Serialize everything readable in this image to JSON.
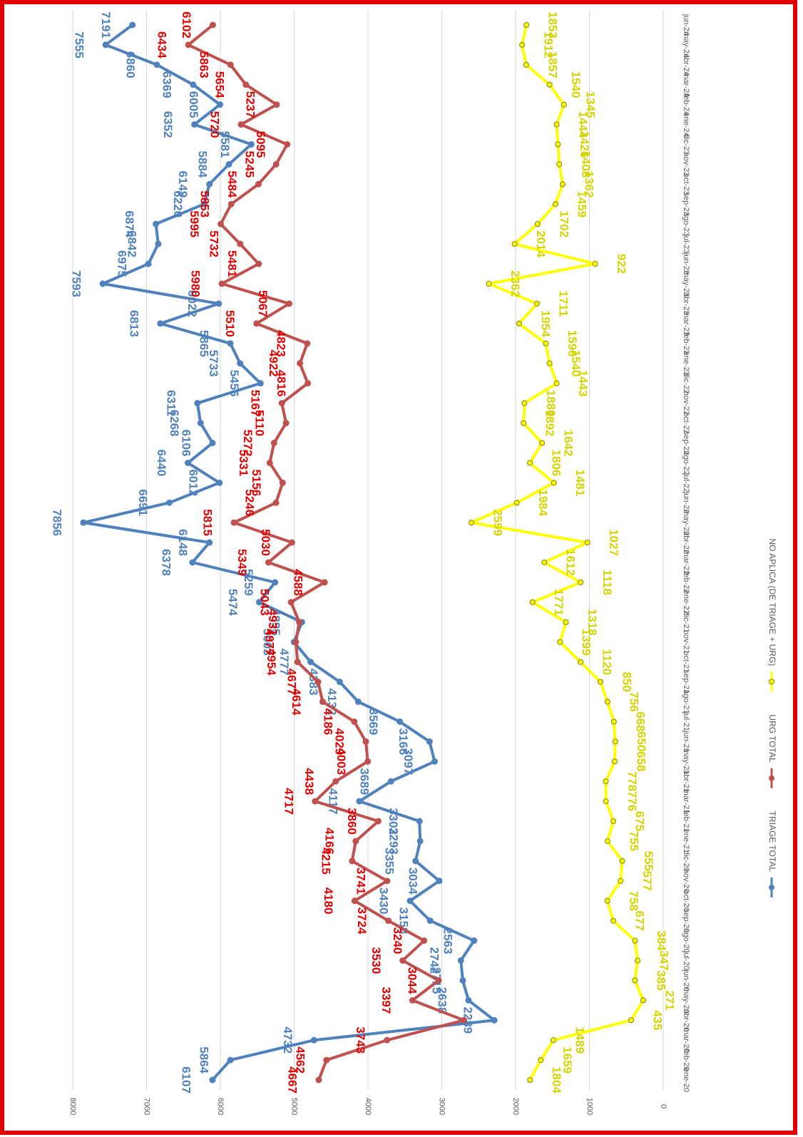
{
  "chart_data": {
    "type": "line",
    "categories": [
      "ene-20",
      "feb-20",
      "mar-20",
      "abr-20",
      "may-20",
      "jun-20",
      "jul-20",
      "ago-20",
      "sep-20",
      "oct-20",
      "nov-20",
      "dic-20",
      "ene-21",
      "feb-21",
      "mar-21",
      "abr-21",
      "may-21",
      "jun-21",
      "jul-21",
      "ago-21",
      "sep-21",
      "oct-21",
      "nov-21",
      "dic-21",
      "ene-22",
      "feb-22",
      "mar-22",
      "abr-22",
      "may-22",
      "jun-22",
      "jul-22",
      "ago-22",
      "sep-22",
      "oct-22",
      "nov-22",
      "dic-22",
      "ene-23",
      "feb-23",
      "mar-23",
      "abr-23",
      "may-23",
      "jun-23",
      "jul-23",
      "ago-23",
      "sep-23",
      "oct-23",
      "nov-23",
      "dic-23",
      "ene-24",
      "feb-24",
      "mar-24",
      "abr-24",
      "may-24",
      "jun-24"
    ],
    "series": [
      {
        "name": "TRIAGE TOTAL",
        "color": "#4f81bd",
        "values": [
          6107,
          5864,
          4732,
          2289,
          2638,
          2715,
          2742,
          2563,
          3158,
          3430,
          3034,
          3355,
          3293,
          3302,
          4117,
          3689,
          3097,
          3166,
          3569,
          4132,
          4383,
          4777,
          5003,
          4895,
          5474,
          5259,
          6378,
          6148,
          7856,
          6691,
          6012,
          6440,
          6106,
          6268,
          6311,
          5456,
          5733,
          5865,
          6813,
          6022,
          7593,
          6975,
          6842,
          6874,
          6220,
          6149,
          5884,
          5581,
          6352,
          6005,
          6369,
          6860,
          7555,
          7191
        ]
      },
      {
        "name": "URG TOTAL",
        "color": "#c0504d",
        "values": [
          4667,
          4562,
          3743,
          2700,
          3397,
          3044,
          3530,
          3240,
          3724,
          4180,
          3741,
          4215,
          4166,
          3860,
          4717,
          4438,
          4003,
          4029,
          4186,
          4614,
          4677,
          4954,
          4977,
          4931,
          5043,
          4588,
          5349,
          5030,
          5815,
          5246,
          5156,
          5331,
          5272,
          5110,
          5167,
          4816,
          4922,
          4823,
          5510,
          5067,
          5980,
          5481,
          5732,
          5995,
          5853,
          5484,
          5245,
          5095,
          5720,
          5237,
          5654,
          5863,
          6434,
          6102
        ],
        "value_labels": [
          "4667",
          "4562",
          "3743",
          null,
          "3397",
          "3044",
          "3530",
          "3240",
          "3724",
          "4180",
          "3741",
          "4215",
          "4166",
          "3860",
          "4717",
          "4438",
          "4003",
          "4029",
          "4186",
          "4614",
          "4677",
          "4954",
          "4977",
          "4931",
          "5043",
          "4588",
          "5349",
          "5030",
          "5815",
          "5246",
          "5156",
          "5331",
          "5272",
          "5110",
          "5167",
          "4816",
          "4922",
          "4823",
          "5510",
          "5067",
          "5980",
          "5481",
          "5732",
          "5995",
          "5853",
          "5484",
          "5245",
          "5095",
          "5720",
          "5237",
          "5654",
          "5863",
          "6434",
          "6102"
        ]
      },
      {
        "name": "NO APLICA (DE TRIAGE + URG)",
        "color": "#ffff00",
        "values": [
          1804,
          1659,
          1489,
          435,
          271,
          385,
          347,
          384,
          677,
          758,
          577,
          555,
          755,
          675,
          776,
          778,
          658,
          650,
          668,
          756,
          850,
          1120,
          1399,
          1318,
          1771,
          1118,
          1612,
          1027,
          2599,
          1984,
          1481,
          1806,
          1642,
          1892,
          1880,
          1443,
          1540,
          1590,
          1954,
          1711,
          2362,
          922,
          2014,
          1702,
          1459,
          1362,
          1408,
          1426,
          1444,
          1345,
          1540,
          1857,
          1912,
          1853
        ]
      }
    ],
    "ylim": [
      0,
      8000
    ],
    "yticks": [
      0,
      1000,
      2000,
      3000,
      4000,
      5000,
      6000,
      7000,
      8000
    ],
    "grid": true
  }
}
